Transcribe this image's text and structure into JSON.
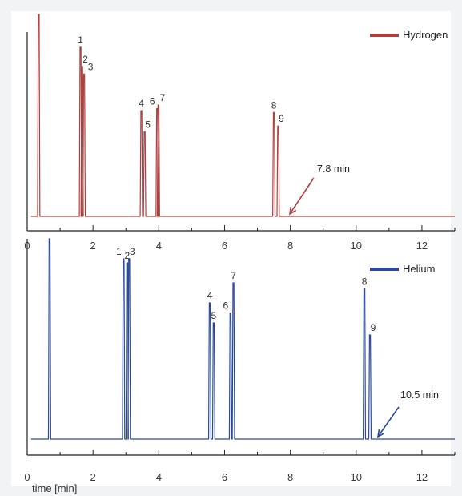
{
  "chart_data": {
    "type": "line",
    "xlabel": "time [min]",
    "xlim": [
      0,
      13
    ],
    "x_ticks": [
      0,
      2,
      4,
      6,
      8,
      10,
      12
    ],
    "x_tick_labels": [
      "0",
      "2",
      "4",
      "6",
      "8",
      "10",
      "12"
    ],
    "panels": [
      {
        "id": "hydrogen",
        "series_name": "Hydrogen",
        "color": "#b0403f",
        "annotation": "7.8 min",
        "solvent_peak": {
          "x": 0.35,
          "height": 1.05
        },
        "peaks": [
          {
            "label": "1",
            "x": 1.62,
            "height": 0.88
          },
          {
            "label": "2",
            "x": 1.67,
            "height": 0.78
          },
          {
            "label": "3",
            "x": 1.73,
            "height": 0.74
          },
          {
            "label": "4",
            "x": 3.47,
            "height": 0.55
          },
          {
            "label": "5",
            "x": 3.57,
            "height": 0.44
          },
          {
            "label": "6",
            "x": 3.95,
            "height": 0.56
          },
          {
            "label": "7",
            "x": 3.99,
            "height": 0.58
          },
          {
            "label": "8",
            "x": 7.5,
            "height": 0.54
          },
          {
            "label": "9",
            "x": 7.63,
            "height": 0.47
          }
        ],
        "end_time": 7.8
      },
      {
        "id": "helium",
        "series_name": "Helium",
        "color": "#2b4a9b",
        "annotation": "10.5 min",
        "solvent_peak": {
          "x": 0.68,
          "height": 1.0
        },
        "peaks": [
          {
            "label": "1",
            "x": 2.93,
            "height": 0.9
          },
          {
            "label": "2",
            "x": 3.04,
            "height": 0.88
          },
          {
            "label": "3",
            "x": 3.1,
            "height": 0.9
          },
          {
            "label": "4",
            "x": 5.55,
            "height": 0.68
          },
          {
            "label": "5",
            "x": 5.67,
            "height": 0.58
          },
          {
            "label": "6",
            "x": 6.18,
            "height": 0.63
          },
          {
            "label": "7",
            "x": 6.27,
            "height": 0.78
          },
          {
            "label": "8",
            "x": 10.25,
            "height": 0.75
          },
          {
            "label": "9",
            "x": 10.42,
            "height": 0.52
          }
        ],
        "end_time": 10.5
      }
    ]
  }
}
